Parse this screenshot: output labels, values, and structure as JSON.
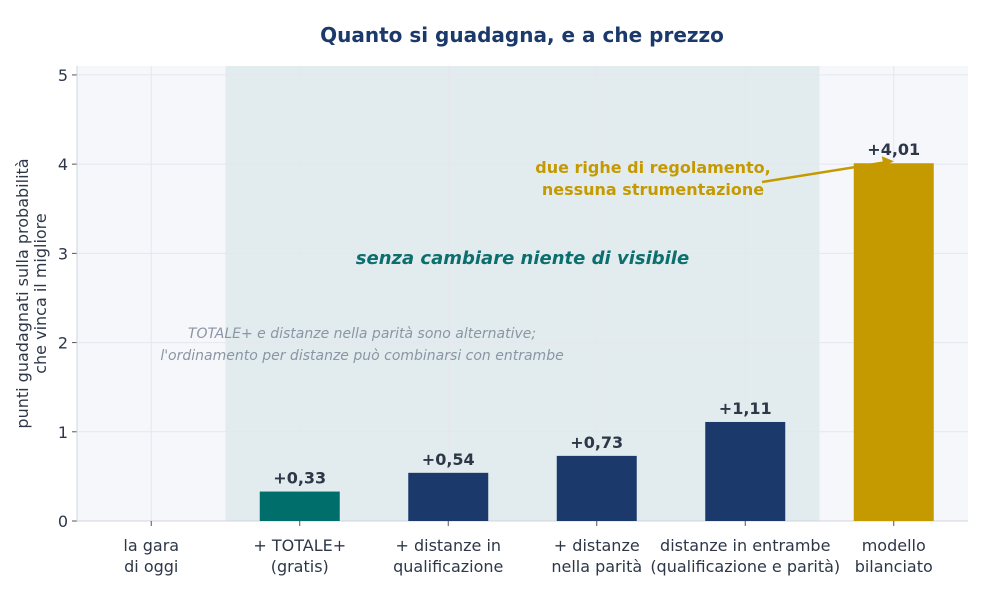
{
  "chart_data": {
    "type": "bar",
    "title": "Quanto si guadagna, e a che prezzo",
    "ylabel_lines": [
      "punti guadagnati sulla probabilità",
      "che vinca il migliore"
    ],
    "xlabel": "",
    "ylim": [
      0,
      5.1
    ],
    "yticks": [
      0,
      1,
      2,
      3,
      4,
      5
    ],
    "grid": true,
    "categories": [
      [
        "la gara",
        "di oggi"
      ],
      [
        "+ TOTALE+",
        "(gratis)"
      ],
      [
        "+ distanze in",
        "qualificazione"
      ],
      [
        "+ distanze",
        "nella parità"
      ],
      [
        "distanze in entrambe",
        "(qualificazione e parità)"
      ],
      [
        "modello",
        "bilanciato"
      ]
    ],
    "values": [
      0,
      0.33,
      0.54,
      0.73,
      1.11,
      4.01
    ],
    "value_labels": [
      "",
      "+0,33",
      "+0,54",
      "+0,73",
      "+1,11",
      "+4,01"
    ],
    "bar_colors": [
      "#1b3a6b",
      "#006e6a",
      "#1b3a6b",
      "#1b3a6b",
      "#1b3a6b",
      "#c49a00"
    ],
    "shaded_band": {
      "from_category": 1,
      "to_category": 4,
      "color": "#e2ecee"
    },
    "annotations": {
      "band_label": "senza cambiare niente di visibile",
      "note_lines": [
        "TOTALE+ e distanze nella parità sono alternative;",
        "l'ordinamento per distanze può combinarsi con entrambe"
      ],
      "gold_lines": [
        "due righe di regolamento,",
        "nessuna strumentazione"
      ],
      "gold_target_category": 5
    },
    "colors": {
      "navy": "#1b3a6b",
      "teal": "#006e6a",
      "gold": "#c49a00",
      "plot_bg": "#f6f7fb",
      "grid": "#e4e7ee",
      "text": "#2d3748"
    }
  }
}
